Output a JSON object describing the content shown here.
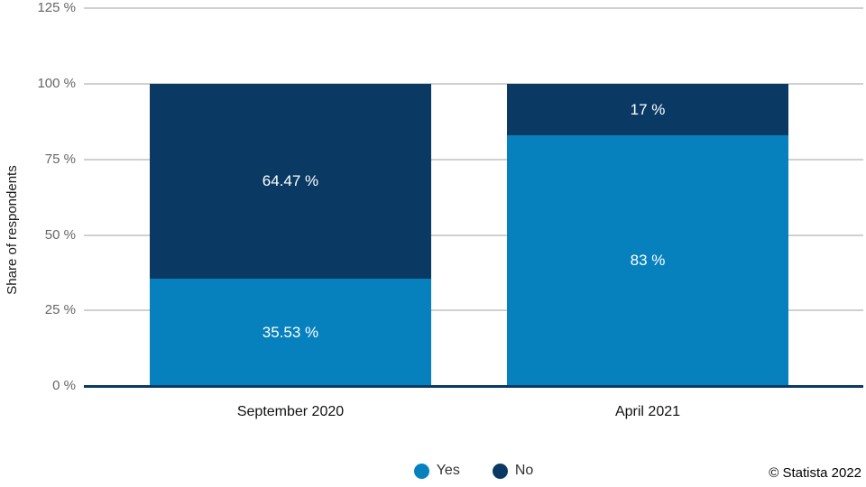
{
  "ylabel": "Share of respondents",
  "copyright": "© Statista 2022",
  "chart_data": {
    "type": "bar",
    "stacked": true,
    "title": "",
    "xlabel": "",
    "ylabel": "Share of respondents",
    "categories": [
      "September 2020",
      "April 2021"
    ],
    "series": [
      {
        "name": "Yes",
        "color": "#0781be",
        "values": [
          35.53,
          83
        ],
        "labels": [
          "35.53 %",
          "83 %"
        ]
      },
      {
        "name": "No",
        "color": "#0a3a64",
        "values": [
          64.47,
          17
        ],
        "labels": [
          "64.47 %",
          "17 %"
        ]
      }
    ],
    "ylim": [
      0,
      125
    ],
    "yticks": [
      0,
      25,
      50,
      75,
      100,
      125
    ],
    "ytick_labels": [
      "0 %",
      "25 %",
      "50 %",
      "75 %",
      "100 %",
      "125 %"
    ],
    "grid": true,
    "legend_position": "bottom",
    "baseline_color": "#0a3a64",
    "gridline_color": "#d0d0d0"
  }
}
